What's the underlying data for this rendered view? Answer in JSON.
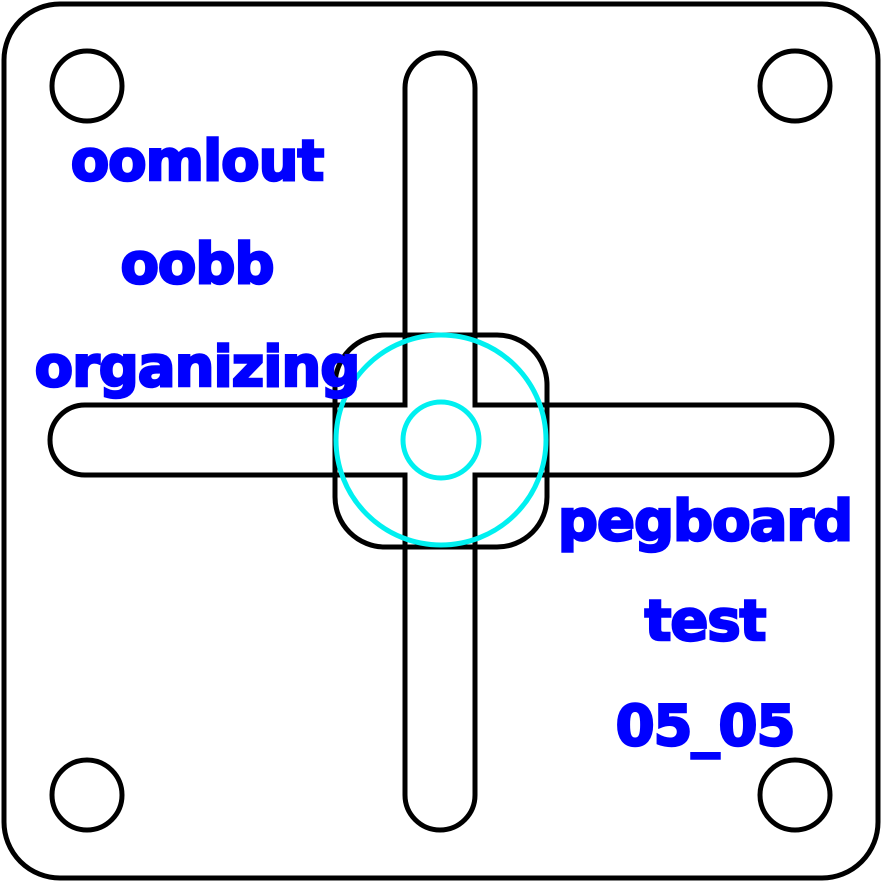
{
  "colors": {
    "line": "#000000",
    "accent": "#00f0f0",
    "text": "#0000ff",
    "background": "#ffffff"
  },
  "labels": {
    "brand": "oomlout",
    "system": "oobb",
    "category": "organizing",
    "item": "pegboard",
    "kind": "test",
    "size": "05_05"
  }
}
